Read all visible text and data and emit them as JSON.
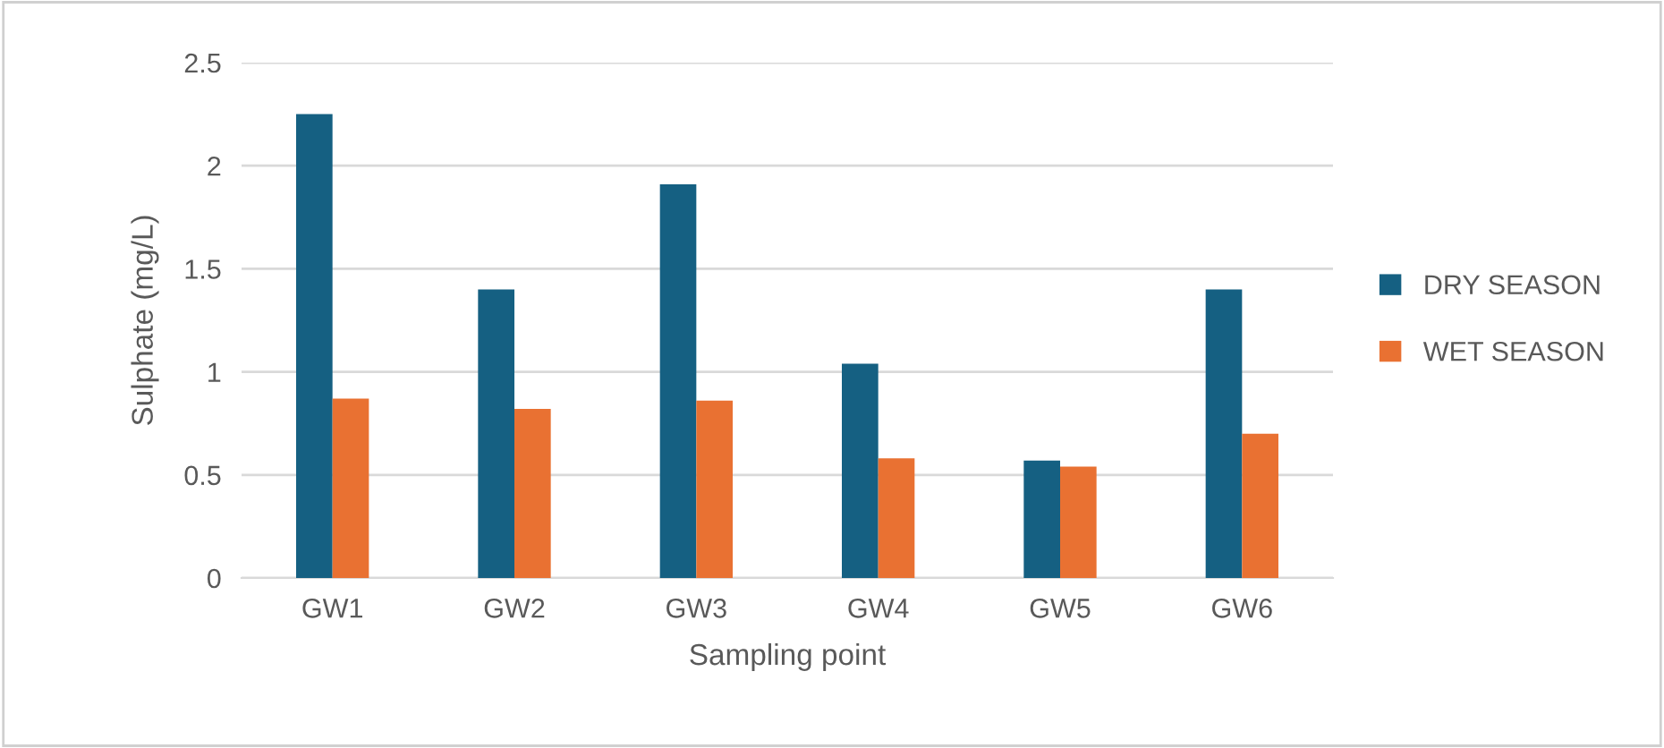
{
  "chart_data": {
    "type": "bar",
    "xlabel": "Sampling point",
    "ylabel": "Sulphate (mg/L)",
    "categories": [
      "GW1",
      "GW2",
      "GW3",
      "GW4",
      "GW5",
      "GW6"
    ],
    "series": [
      {
        "name": "DRY SEASON",
        "color": "#156082",
        "values": [
          2.25,
          1.4,
          1.91,
          1.04,
          0.57,
          1.4
        ]
      },
      {
        "name": "WET SEASON",
        "color": "#e97132",
        "values": [
          0.87,
          0.82,
          0.86,
          0.58,
          0.54,
          0.7
        ]
      }
    ],
    "ylim": [
      0,
      2.5
    ],
    "yticks": [
      0,
      0.5,
      1,
      1.5,
      2,
      2.5
    ],
    "grid": "y",
    "legend": "right"
  }
}
